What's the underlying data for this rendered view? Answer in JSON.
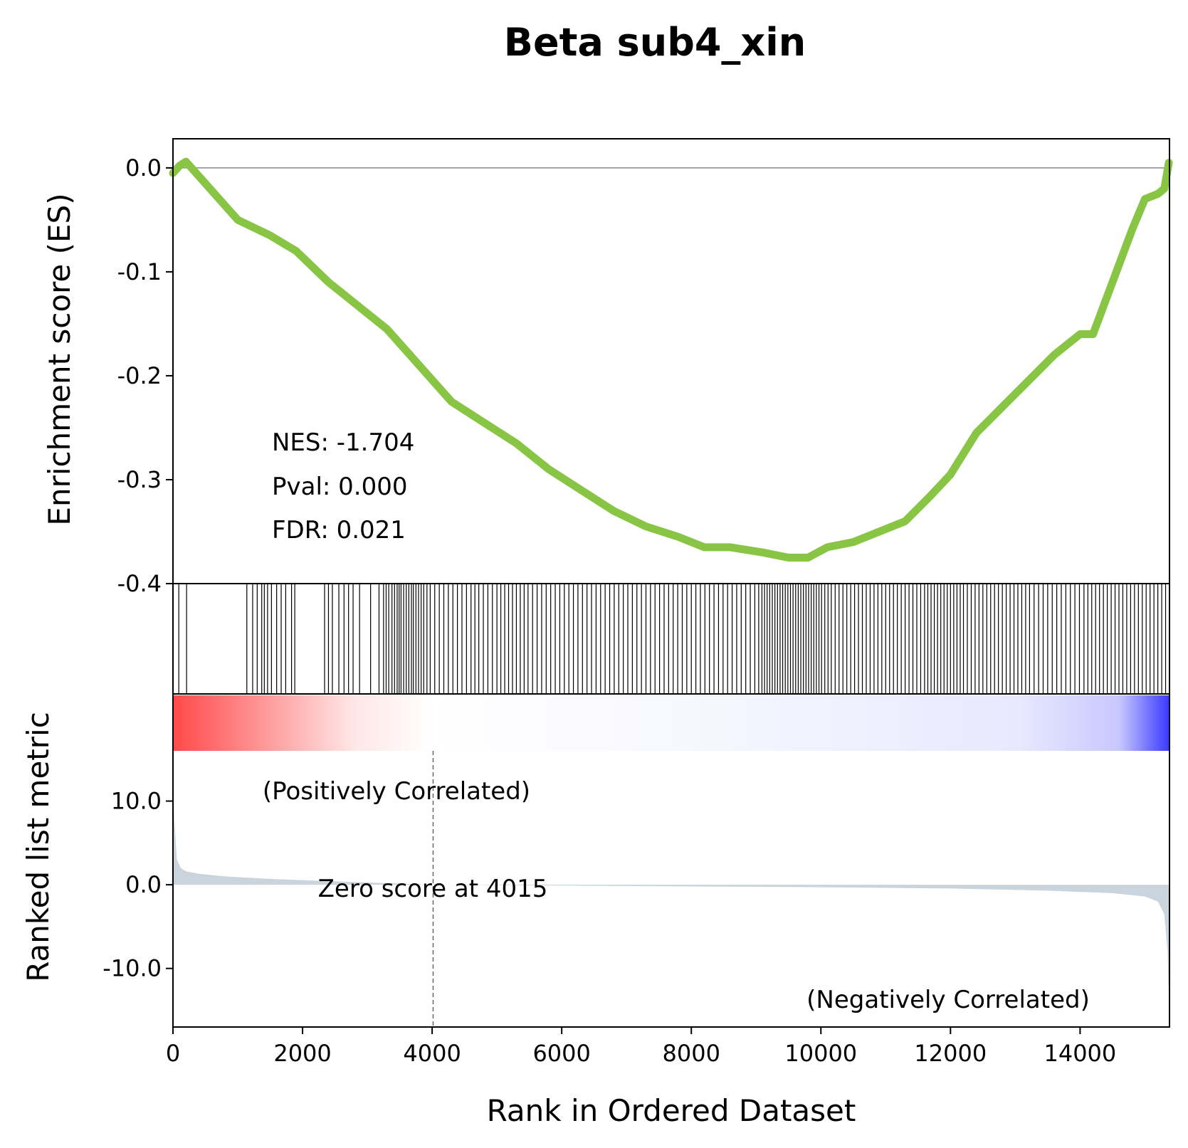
{
  "chart_data": {
    "type": "line",
    "title": "Beta sub4_xin",
    "xlabel": "Rank in Ordered Dataset",
    "xlim": [
      0,
      15380
    ],
    "x_ticks": [
      0,
      2000,
      4000,
      6000,
      8000,
      10000,
      12000,
      14000
    ],
    "x_tick_labels": [
      "0",
      "2000",
      "4000",
      "6000",
      "8000",
      "10000",
      "12000",
      "14000"
    ],
    "es_panel": {
      "ylabel": "Enrichment score (ES)",
      "ylim": [
        -0.4,
        0.028
      ],
      "y_ticks": [
        0.0,
        -0.1,
        -0.2,
        -0.3,
        -0.4
      ],
      "y_tick_labels": [
        "0.0",
        "-0.1",
        "-0.2",
        "-0.3",
        "-0.4"
      ],
      "line_color": "#88c544",
      "zero_line": true,
      "series": [
        {
          "x": [
            0,
            100,
            200,
            1000,
            1500,
            1900,
            2400,
            2900,
            3300,
            3800,
            4300,
            4800,
            5300,
            5800,
            6300,
            6800,
            7300,
            7800,
            8200,
            8600,
            9100,
            9500,
            9800,
            10100,
            10500,
            10900,
            11300,
            11700,
            12000,
            12400,
            12800,
            13200,
            13600,
            14000,
            14200,
            14500,
            14800,
            15000,
            15200,
            15300,
            15370
          ],
          "y": [
            -0.005,
            0.002,
            0.006,
            -0.05,
            -0.065,
            -0.08,
            -0.11,
            -0.135,
            -0.155,
            -0.19,
            -0.225,
            -0.245,
            -0.265,
            -0.29,
            -0.31,
            -0.33,
            -0.345,
            -0.355,
            -0.365,
            -0.365,
            -0.37,
            -0.375,
            -0.375,
            -0.365,
            -0.36,
            -0.35,
            -0.34,
            -0.315,
            -0.295,
            -0.255,
            -0.23,
            -0.205,
            -0.18,
            -0.16,
            -0.16,
            -0.11,
            -0.06,
            -0.03,
            -0.025,
            -0.02,
            0.005
          ]
        }
      ]
    },
    "annotations": {
      "nes": "NES: -1.704",
      "pval": "Pval: 0.000",
      "fdr": "FDR: 0.021"
    },
    "hits_panel": {
      "hit_ranks": [
        90,
        210,
        1140,
        1230,
        1300,
        1370,
        1410,
        1460,
        1520,
        1600,
        1670,
        1740,
        1830,
        1880,
        2340,
        2400,
        2460,
        2560,
        2640,
        2710,
        2780,
        2880,
        3050,
        3180,
        3250,
        3290,
        3330,
        3380,
        3420,
        3460,
        3490,
        3520,
        3560,
        3600,
        3640,
        3680,
        3710,
        3750,
        3790,
        3830,
        3870,
        3920,
        3970,
        4040,
        4110,
        4180,
        4250,
        4320,
        4390,
        4460,
        4530,
        4600,
        4660,
        4720,
        4790,
        4860,
        4930,
        5000,
        5060,
        5120,
        5180,
        5240,
        5300,
        5360,
        5420,
        5480,
        5550,
        5620,
        5690,
        5760,
        5830,
        5900,
        5970,
        6040,
        6110,
        6180,
        6250,
        6320,
        6390,
        6460,
        6530,
        6600,
        6670,
        6740,
        6810,
        6880,
        6950,
        7020,
        7090,
        7160,
        7230,
        7300,
        7370,
        7440,
        7510,
        7580,
        7650,
        7720,
        7790,
        7860,
        7930,
        8000,
        8070,
        8140,
        8210,
        8280,
        8350,
        8420,
        8490,
        8560,
        8630,
        8700,
        8770,
        8840,
        8910,
        8980,
        9040,
        9090,
        9130,
        9170,
        9210,
        9250,
        9290,
        9330,
        9370,
        9410,
        9450,
        9490,
        9530,
        9570,
        9610,
        9650,
        9690,
        9730,
        9770,
        9810,
        9850,
        9890,
        9930,
        9970,
        10010,
        10060,
        10110,
        10160,
        10220,
        10280,
        10340,
        10400,
        10460,
        10520,
        10580,
        10640,
        10700,
        10760,
        10820,
        10880,
        10940,
        11000,
        11060,
        11120,
        11180,
        11240,
        11300,
        11360,
        11420,
        11480,
        11540,
        11600,
        11650,
        11700,
        11750,
        11800,
        11850,
        11900,
        11950,
        12000,
        12050,
        12100,
        12150,
        12200,
        12260,
        12320,
        12380,
        12440,
        12500,
        12560,
        12620,
        12680,
        12740,
        12800,
        12860,
        12920,
        12980,
        13040,
        13100,
        13160,
        13220,
        13290,
        13360,
        13430,
        13500,
        13570,
        13640,
        13710,
        13780,
        13850,
        13920,
        13990,
        14060,
        14120,
        14180,
        14240,
        14300,
        14360,
        14420,
        14480,
        14540,
        14600,
        14660,
        14720,
        14780,
        14840,
        14900,
        14960,
        15020,
        15080,
        15140,
        15200,
        15260,
        15320
      ]
    },
    "gradient_bar": {
      "colormap": "red-white-blue",
      "start_color": "#ff4a4a",
      "end_color": "#3b3bff"
    },
    "metric_panel": {
      "ylabel": "Ranked list metric",
      "ylim": [
        -17,
        16
      ],
      "y_ticks": [
        10.0,
        0.0,
        -10.0
      ],
      "y_tick_labels": [
        "10.0",
        "0.0",
        "-10.0"
      ],
      "fill_color": "#c9d4dc",
      "series": [
        {
          "x": [
            0,
            20,
            60,
            120,
            200,
            400,
            800,
            1500,
            2500,
            4015,
            6000,
            8000,
            10000,
            12000,
            13500,
            14500,
            15000,
            15200,
            15300,
            15350,
            15380
          ],
          "y": [
            15.0,
            8.0,
            3.0,
            2.0,
            1.6,
            1.3,
            1.0,
            0.7,
            0.4,
            0.0,
            -0.1,
            -0.2,
            -0.3,
            -0.45,
            -0.7,
            -1.0,
            -1.4,
            -2.0,
            -3.5,
            -8.0,
            -16.5
          ]
        }
      ],
      "zero_score_rank": 4015,
      "zero_score_label": "Zero score at 4015",
      "positive_label": "(Positively Correlated)",
      "negative_label": "(Negatively Correlated)",
      "positive_color": "#ff0000",
      "negative_color": "#0000ff"
    }
  }
}
